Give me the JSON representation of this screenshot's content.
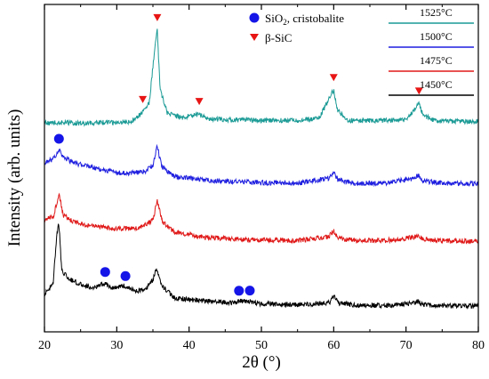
{
  "chart_data": {
    "type": "line",
    "xlabel": "2θ (°)",
    "ylabel": "Intensity (arb. units)",
    "xlim": [
      20,
      80
    ],
    "x_ticks": [
      20,
      30,
      40,
      50,
      60,
      70,
      80
    ],
    "y_ticks_shown": false,
    "grid": false,
    "legend_position": "top-right",
    "series": [
      {
        "name": "1525°C",
        "color": "#1a9a95",
        "x": [
          20,
          22,
          24,
          26,
          28,
          30,
          32,
          33.5,
          34.5,
          35.3,
          35.6,
          36.0,
          37,
          39,
          41.3,
          43,
          46,
          50,
          55,
          58,
          59.5,
          60.0,
          60.5,
          62,
          66,
          70,
          71.3,
          71.8,
          72.3,
          74,
          77,
          80
        ],
        "y": [
          0.07,
          0.072,
          0.07,
          0.07,
          0.072,
          0.072,
          0.075,
          0.1,
          0.13,
          0.3,
          0.345,
          0.17,
          0.1,
          0.085,
          0.098,
          0.082,
          0.08,
          0.078,
          0.078,
          0.085,
          0.15,
          0.168,
          0.11,
          0.078,
          0.077,
          0.08,
          0.115,
          0.128,
          0.095,
          0.077,
          0.075,
          0.074
        ]
      },
      {
        "name": "1500°C",
        "color": "#1f1fe0",
        "x": [
          20,
          21.0,
          21.7,
          22.0,
          22.5,
          24,
          26,
          28,
          30,
          32,
          34,
          35.0,
          35.6,
          36.2,
          38,
          42,
          46,
          50,
          55,
          59.3,
          60.0,
          60.6,
          63,
          67,
          71.2,
          71.7,
          72.2,
          75,
          80
        ],
        "y": [
          0.11,
          0.12,
          0.135,
          0.15,
          0.13,
          0.11,
          0.1,
          0.09,
          0.082,
          0.08,
          0.085,
          0.105,
          0.16,
          0.1,
          0.07,
          0.06,
          0.055,
          0.052,
          0.05,
          0.065,
          0.08,
          0.06,
          0.05,
          0.05,
          0.065,
          0.075,
          0.058,
          0.05,
          0.048
        ]
      },
      {
        "name": "1475°C",
        "color": "#e01818",
        "x": [
          20,
          21.3,
          22.0,
          22.6,
          24,
          26,
          28,
          30,
          33,
          35.0,
          35.6,
          36.3,
          38,
          42,
          46,
          50,
          55,
          59.3,
          60.0,
          60.6,
          63,
          67,
          71.2,
          71.7,
          72.2,
          75,
          80
        ],
        "y": [
          0.08,
          0.095,
          0.16,
          0.095,
          0.075,
          0.065,
          0.06,
          0.055,
          0.055,
          0.08,
          0.14,
          0.075,
          0.045,
          0.03,
          0.025,
          0.022,
          0.02,
          0.032,
          0.048,
          0.028,
          0.02,
          0.02,
          0.03,
          0.038,
          0.025,
          0.02,
          0.018
        ]
      },
      {
        "name": "1450°C",
        "color": "#000000",
        "x": [
          20,
          21.2,
          21.7,
          22.0,
          22.4,
          23.5,
          25,
          27,
          28.4,
          29,
          31,
          32.5,
          34,
          35.0,
          35.5,
          36.3,
          38,
          42,
          46,
          47.0,
          48.4,
          50,
          55,
          59.4,
          60.0,
          60.6,
          63,
          67,
          71.1,
          71.6,
          72.1,
          75,
          80
        ],
        "y": [
          0.05,
          0.08,
          0.23,
          0.26,
          0.12,
          0.095,
          0.08,
          0.07,
          0.085,
          0.07,
          0.075,
          0.06,
          0.065,
          0.095,
          0.125,
          0.075,
          0.04,
          0.03,
          0.025,
          0.03,
          0.03,
          0.022,
          0.02,
          0.025,
          0.045,
          0.025,
          0.018,
          0.017,
          0.024,
          0.032,
          0.02,
          0.017,
          0.015
        ]
      }
    ],
    "marker_legend": [
      {
        "label_main": "SiO",
        "label_sub": "2",
        "label_rest": ", cristobalite",
        "marker": "circle",
        "color": "#1515e8"
      },
      {
        "label_main": "β-SiC",
        "label_sub": "",
        "label_rest": "",
        "marker": "triangle-down",
        "color": "#e81515"
      }
    ],
    "annotations": {
      "cristobalite_peaks": [
        {
          "series": "1500°C",
          "x": 22.0
        },
        {
          "series": "1450°C",
          "x": 28.4
        },
        {
          "series": "1450°C",
          "x": 31.2
        },
        {
          "series": "1450°C",
          "x": 46.9
        },
        {
          "series": "1450°C",
          "x": 48.4
        }
      ],
      "sic_peaks": [
        {
          "series": "1525°C",
          "x": 33.6
        },
        {
          "series": "1525°C",
          "x": 35.6
        },
        {
          "series": "1525°C",
          "x": 41.4
        },
        {
          "series": "1525°C",
          "x": 60.0
        },
        {
          "series": "1525°C",
          "x": 71.8
        }
      ]
    }
  }
}
